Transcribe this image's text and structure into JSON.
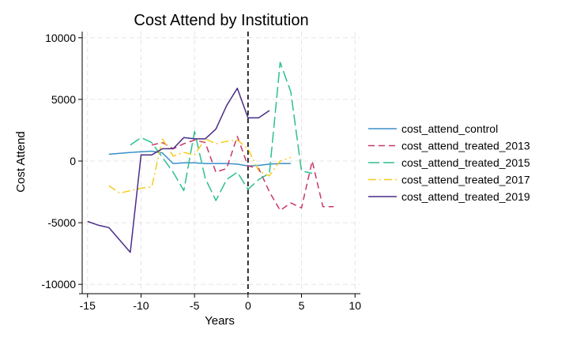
{
  "chart_data": {
    "type": "line",
    "title": "Cost Attend by Institution",
    "xlabel": "Years",
    "ylabel": "Cost Attend",
    "xlim": [
      -15.5,
      10.5
    ],
    "ylim": [
      -10500,
      10500
    ],
    "xticks": [
      -15,
      -10,
      -5,
      0,
      5,
      10
    ],
    "yticks": [
      10000,
      5000,
      0,
      -5000,
      -10000
    ],
    "xtick_labels": [
      "-15",
      "-10",
      "-5",
      "0",
      "5",
      "10"
    ],
    "ytick_labels": [
      "10000",
      "5000",
      "0",
      "-5000",
      "-10000"
    ],
    "grid": true,
    "legend_position": "right",
    "reference_line": {
      "x": 0,
      "style": "dashed",
      "color": "#000000"
    },
    "series": [
      {
        "name": "cost_attend_control",
        "color": "#3a8fc8",
        "dash": "solid",
        "points": [
          [
            -13,
            550
          ],
          [
            -12,
            620
          ],
          [
            -11,
            700
          ],
          [
            -10,
            750
          ],
          [
            -9,
            800
          ],
          [
            -8,
            650
          ],
          [
            -7,
            -200
          ],
          [
            -6,
            -150
          ],
          [
            -5,
            -150
          ],
          [
            -4,
            -200
          ],
          [
            -3,
            -200
          ],
          [
            -2,
            -200
          ],
          [
            -1,
            -250
          ],
          [
            0,
            -400
          ],
          [
            1,
            -350
          ],
          [
            2,
            -250
          ],
          [
            3,
            -200
          ],
          [
            4,
            -200
          ]
        ]
      },
      {
        "name": "cost_attend_treated_2013",
        "color": "#c8366b",
        "dash": "8,5",
        "points": [
          [
            -9,
            1300
          ],
          [
            -8,
            1500
          ],
          [
            -7,
            1000
          ],
          [
            -6,
            1400
          ],
          [
            -5,
            1700
          ],
          [
            -4,
            1500
          ],
          [
            -3,
            -900
          ],
          [
            -2,
            -600
          ],
          [
            -1,
            2000
          ],
          [
            0,
            -400
          ],
          [
            1,
            -600
          ],
          [
            2,
            -2500
          ],
          [
            3,
            -4000
          ],
          [
            4,
            -3400
          ],
          [
            5,
            -3800
          ],
          [
            6,
            0
          ],
          [
            7,
            -3700
          ],
          [
            8,
            -3700
          ]
        ]
      },
      {
        "name": "cost_attend_treated_2015",
        "color": "#2dbf8f",
        "dash": "14,5",
        "points": [
          [
            -11,
            1300
          ],
          [
            -10,
            1900
          ],
          [
            -9,
            1500
          ],
          [
            -8,
            300
          ],
          [
            -7,
            -900
          ],
          [
            -6,
            -2400
          ],
          [
            -5,
            2400
          ],
          [
            -4,
            -1400
          ],
          [
            -3,
            -3200
          ],
          [
            -2,
            -1500
          ],
          [
            -1,
            -900
          ],
          [
            0,
            -2300
          ],
          [
            1,
            -1500
          ],
          [
            2,
            -1000
          ],
          [
            3,
            8000
          ],
          [
            4,
            5600
          ],
          [
            5,
            -800
          ],
          [
            6,
            -1000
          ]
        ]
      },
      {
        "name": "cost_attend_treated_2017",
        "color": "#f6cc1e",
        "dash": "10,4,2,4",
        "points": [
          [
            -13,
            -2000
          ],
          [
            -12,
            -2600
          ],
          [
            -11,
            -2400
          ],
          [
            -10,
            -2200
          ],
          [
            -9,
            -2100
          ],
          [
            -8,
            1800
          ],
          [
            -7,
            400
          ],
          [
            -6,
            700
          ],
          [
            -5,
            500
          ],
          [
            -4,
            1800
          ],
          [
            -3,
            1400
          ],
          [
            -2,
            1600
          ],
          [
            -1,
            1700
          ],
          [
            0,
            1000
          ],
          [
            1,
            -800
          ],
          [
            2,
            -1200
          ],
          [
            3,
            0
          ],
          [
            4,
            300
          ]
        ]
      },
      {
        "name": "cost_attend_treated_2019",
        "color": "#4a2d87",
        "dash": "solid",
        "points": [
          [
            -15,
            -4900
          ],
          [
            -14,
            -5200
          ],
          [
            -13,
            -5400
          ],
          [
            -12,
            -6400
          ],
          [
            -11,
            -7400
          ],
          [
            -10,
            500
          ],
          [
            -9,
            500
          ],
          [
            -8,
            1000
          ],
          [
            -7,
            1000
          ],
          [
            -6,
            1900
          ],
          [
            -5,
            1800
          ],
          [
            -4,
            1800
          ],
          [
            -3,
            2600
          ],
          [
            -2,
            4500
          ],
          [
            -1,
            5900
          ],
          [
            0,
            3500
          ],
          [
            1,
            3500
          ],
          [
            2,
            4100
          ]
        ]
      }
    ]
  }
}
